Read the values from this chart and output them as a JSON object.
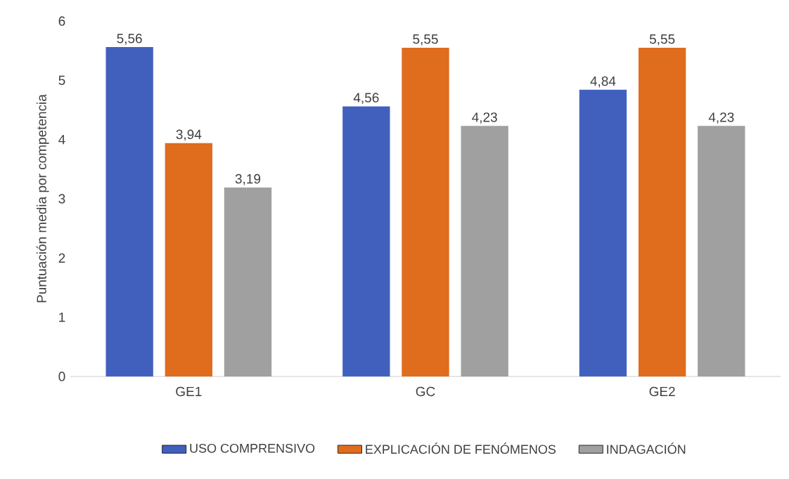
{
  "chart_data": {
    "type": "bar",
    "ylabel": "Puntuación media por competencia",
    "categories": [
      "GE1",
      "GC",
      "GE2"
    ],
    "series": [
      {
        "name": "USO COMPRENSIVO",
        "color": "#4160be",
        "values": [
          5.56,
          4.56,
          4.84
        ],
        "value_labels": [
          "5,56",
          "4,56",
          "4,84"
        ]
      },
      {
        "name": "EXPLICACIÓN DE FENÓMENOS",
        "color": "#e06c1e",
        "values": [
          3.94,
          5.55,
          5.55
        ],
        "value_labels": [
          "3,94",
          "5,55",
          "5,55"
        ]
      },
      {
        "name": "INDAGACIÓN",
        "color": "#a0a0a0",
        "values": [
          3.19,
          4.23,
          4.23
        ],
        "value_labels": [
          "3,19",
          "4,23",
          "4,23"
        ]
      }
    ],
    "ylim": [
      0,
      6
    ],
    "yticks": [
      0,
      1,
      2,
      3,
      4,
      5,
      6
    ],
    "grid": false,
    "legend": "bottom"
  }
}
